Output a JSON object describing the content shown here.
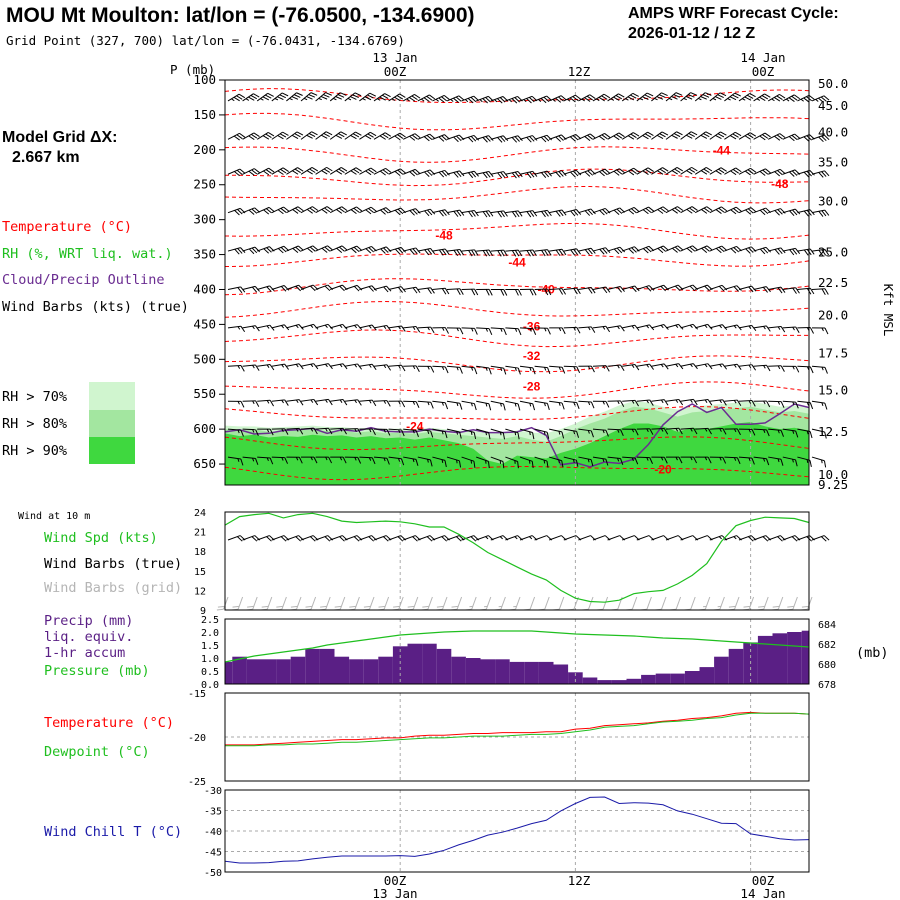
{
  "header": {
    "title": "MOU Mt Moulton:  lat/lon = (-76.0500, -134.6900)",
    "subtitle": "Grid Point (327, 700) lat/lon = (-76.0431, -134.6769)",
    "cycle_label": "AMPS WRF Forecast Cycle:",
    "cycle_value": "2026-01-12 / 12  Z"
  },
  "time_axis": {
    "ticks": [
      {
        "label": "00Z",
        "date": "13 Jan"
      },
      {
        "label": "12Z",
        "date": ""
      },
      {
        "label": "00Z",
        "date": "14 Jan"
      }
    ]
  },
  "left_legend": {
    "grid_label": "Model Grid ΔX:",
    "grid_value": "2.667 km",
    "temperature": "Temperature (°C)",
    "rh": "RH (%, WRT liq. wat.)",
    "cloud": "Cloud/Precip Outline",
    "wind": "Wind Barbs (kts) (true)",
    "rh_levels": [
      "RH > 70%",
      "RH > 80%",
      "RH > 90%"
    ]
  },
  "colors": {
    "temperature": "#ff0000",
    "rh": "#1fbf1f",
    "cloud": "#6a2c91",
    "precip": "#5a1f85",
    "windchill": "#1a1aa8",
    "grid": "#aaaaaa",
    "rh70": "#d0f5cf",
    "rh80": "#a3e6a0",
    "rh90": "#3fd83f"
  },
  "chart_data": [
    {
      "type": "heatmap",
      "name": "profile",
      "pressure_title": "P (mb)",
      "pressure_ticks": [
        100,
        150,
        200,
        250,
        300,
        350,
        400,
        450,
        500,
        550,
        600,
        650
      ],
      "pressure_range": [
        100,
        680
      ],
      "height_title": "Kft MSL",
      "height_ticks": [
        {
          "label": "50.0",
          "p": 106
        },
        {
          "label": "45.0",
          "p": 137
        },
        {
          "label": "40.0",
          "p": 175
        },
        {
          "label": "35.0",
          "p": 218
        },
        {
          "label": "30.0",
          "p": 274
        },
        {
          "label": "25.0",
          "p": 347
        },
        {
          "label": "22.5",
          "p": 391
        },
        {
          "label": "20.0",
          "p": 437
        },
        {
          "label": "17.5",
          "p": 492
        },
        {
          "label": "15.0",
          "p": 545
        },
        {
          "label": "12.5",
          "p": 604
        },
        {
          "label": "10.0",
          "p": 666
        },
        {
          "label": "9.25",
          "p": 680
        }
      ],
      "temperature_labels": [
        {
          "value": "-44",
          "p": 201,
          "hour": 22
        },
        {
          "value": "-48",
          "p": 249,
          "hour": 26
        },
        {
          "value": "-48",
          "p": 323,
          "hour": 3
        },
        {
          "value": "-44",
          "p": 361,
          "hour": 8
        },
        {
          "value": "-40",
          "p": 400,
          "hour": 10
        },
        {
          "value": "-36",
          "p": 453,
          "hour": 9
        },
        {
          "value": "-32",
          "p": 495,
          "hour": 9
        },
        {
          "value": "-28",
          "p": 539,
          "hour": 9
        },
        {
          "value": "-24",
          "p": 596,
          "hour": 1
        },
        {
          "value": "-20",
          "p": 658,
          "hour": 18
        }
      ],
      "cloud_top_hours": [
        -12,
        -11,
        -10,
        -9,
        -8,
        -7,
        -6,
        -5,
        -4,
        -3,
        -2,
        -1,
        0,
        1,
        2,
        3,
        4,
        5,
        6,
        7,
        8,
        9,
        10,
        11,
        12,
        13,
        14,
        15,
        16,
        17,
        18,
        19,
        20,
        21,
        22,
        23,
        24,
        25,
        26,
        27,
        28
      ],
      "cloud_top_p": [
        604,
        601,
        607,
        606,
        602,
        601,
        599,
        606,
        601,
        603,
        598,
        603,
        604,
        604,
        600,
        603,
        605,
        601,
        605,
        605,
        604,
        598,
        609,
        651,
        648,
        654,
        647,
        649,
        643,
        622,
        594,
        575,
        564,
        576,
        569,
        593,
        593,
        591,
        578,
        564,
        569
      ],
      "rh90_top_p": [
        606,
        610,
        608,
        612,
        610,
        611,
        608,
        610,
        609,
        612,
        610,
        613,
        612,
        615,
        612,
        616,
        620,
        628,
        645,
        650,
        638,
        640,
        642,
        634,
        628,
        620,
        610,
        600,
        592,
        592,
        596,
        604,
        598,
        600,
        596,
        592,
        590,
        596,
        600,
        598,
        602
      ],
      "rh80_top_p": [
        600,
        602,
        600,
        604,
        603,
        602,
        600,
        603,
        602,
        605,
        603,
        606,
        605,
        607,
        604,
        606,
        608,
        610,
        612,
        614,
        610,
        615,
        618,
        610,
        600,
        592,
        585,
        575,
        568,
        570,
        576,
        582,
        576,
        574,
        572,
        570,
        568,
        572,
        576,
        574,
        578
      ],
      "rh70_top_p": [
        595,
        596,
        596,
        598,
        597,
        596,
        595,
        597,
        597,
        599,
        598,
        600,
        599,
        601,
        598,
        600,
        602,
        603,
        604,
        606,
        602,
        605,
        606,
        600,
        592,
        582,
        575,
        566,
        560,
        562,
        568,
        572,
        568,
        566,
        564,
        562,
        560,
        564,
        568,
        566,
        570
      ],
      "wind_levels": [
        130,
        185,
        235,
        290,
        345,
        400,
        455,
        510,
        560,
        600,
        640
      ]
    },
    {
      "type": "line",
      "name": "wind10m",
      "panel_label": "Wind at 10 m",
      "labels": [
        "Wind Spd (kts)",
        "Wind Barbs (true)",
        "Wind Barbs (grid)"
      ],
      "y_ticks": [
        9,
        12,
        15,
        18,
        21,
        24
      ],
      "ylim": [
        9,
        24
      ],
      "x": [
        -12,
        -11,
        -10,
        -9,
        -8,
        -7,
        -6,
        -5,
        -4,
        -3,
        -2,
        -1,
        0,
        1,
        2,
        3,
        4,
        5,
        6,
        7,
        8,
        9,
        10,
        11,
        12,
        13,
        14,
        15,
        16,
        17,
        18,
        19,
        20,
        21,
        22,
        23,
        24,
        25,
        26,
        27,
        28
      ],
      "speed": [
        22.0,
        23.3,
        23.6,
        23.8,
        23.1,
        23.6,
        23.8,
        23.3,
        22.6,
        22.4,
        22.5,
        22.6,
        22.5,
        22.2,
        21.7,
        21.7,
        20.6,
        19.3,
        17.8,
        16.7,
        15.6,
        14.5,
        13.6,
        12.0,
        10.8,
        10.3,
        10.2,
        10.5,
        11.5,
        11.8,
        12.0,
        13.0,
        14.3,
        16.1,
        19.5,
        21.9,
        22.7,
        23.2,
        23.1,
        23.0,
        22.4
      ]
    },
    {
      "type": "bar",
      "name": "precip",
      "labels": [
        "Precip (mm)",
        "liq. equiv.",
        "1-hr accum",
        "Pressure (mb)"
      ],
      "left_ticks": [
        "0.0",
        "0.5",
        "1.0",
        "1.5",
        "2.0",
        "2.5"
      ],
      "right_ticks": [
        "678",
        "680",
        "682",
        "684"
      ],
      "right_unit": "(mb)",
      "ylim_precip": [
        0,
        2.5
      ],
      "ylim_pressure": [
        678,
        684.5
      ],
      "x": [
        -12,
        -11,
        -10,
        -9,
        -8,
        -7,
        -6,
        -5,
        -4,
        -3,
        -2,
        -1,
        0,
        1,
        2,
        3,
        4,
        5,
        6,
        7,
        8,
        9,
        10,
        11,
        12,
        13,
        14,
        15,
        16,
        17,
        18,
        19,
        20,
        21,
        22,
        23,
        24,
        25,
        26,
        27,
        28
      ],
      "precip": [
        0.85,
        1.05,
        0.95,
        0.95,
        0.95,
        1.05,
        1.35,
        1.35,
        1.05,
        0.95,
        0.95,
        1.05,
        1.45,
        1.55,
        1.55,
        1.35,
        1.05,
        1.0,
        0.95,
        0.95,
        0.85,
        0.85,
        0.85,
        0.75,
        0.45,
        0.25,
        0.15,
        0.15,
        0.2,
        0.35,
        0.4,
        0.4,
        0.5,
        0.65,
        1.05,
        1.35,
        1.6,
        1.85,
        1.95,
        2.0,
        2.05
      ],
      "pressure": [
        680.2,
        680.5,
        680.8,
        681.0,
        681.2,
        681.4,
        681.6,
        681.9,
        682.1,
        682.3,
        682.5,
        682.7,
        682.9,
        683.0,
        683.1,
        683.2,
        683.25,
        683.3,
        683.3,
        683.3,
        683.3,
        683.3,
        683.2,
        683.1,
        683.0,
        682.95,
        682.9,
        682.85,
        682.8,
        682.7,
        682.6,
        682.55,
        682.5,
        682.4,
        682.3,
        682.2,
        682.1,
        682.0,
        681.9,
        681.8,
        681.7
      ]
    },
    {
      "type": "line",
      "name": "tempdew",
      "labels": [
        "Temperature (°C)",
        "Dewpoint (°C)"
      ],
      "y_ticks": [
        -25,
        -20,
        -15
      ],
      "ylim": [
        -25,
        -15
      ],
      "x": [
        -12,
        -11,
        -10,
        -9,
        -8,
        -7,
        -6,
        -5,
        -4,
        -3,
        -2,
        -1,
        0,
        1,
        2,
        3,
        4,
        5,
        6,
        7,
        8,
        9,
        10,
        11,
        12,
        13,
        14,
        15,
        16,
        17,
        18,
        19,
        20,
        21,
        22,
        23,
        24,
        25,
        26,
        27,
        28
      ],
      "temperature": [
        -20.9,
        -20.9,
        -20.9,
        -20.8,
        -20.7,
        -20.6,
        -20.5,
        -20.4,
        -20.3,
        -20.3,
        -20.2,
        -20.1,
        -20.1,
        -19.9,
        -19.8,
        -19.8,
        -19.7,
        -19.6,
        -19.6,
        -19.5,
        -19.5,
        -19.5,
        -19.4,
        -19.4,
        -19.1,
        -19.0,
        -18.7,
        -18.6,
        -18.5,
        -18.4,
        -18.2,
        -18.1,
        -17.9,
        -17.8,
        -17.6,
        -17.3,
        -17.2,
        -17.3,
        -17.3,
        -17.3,
        -17.4
      ],
      "dewpoint": [
        -21.0,
        -21.0,
        -21.0,
        -20.9,
        -20.9,
        -20.8,
        -20.8,
        -20.7,
        -20.6,
        -20.6,
        -20.5,
        -20.4,
        -20.3,
        -20.2,
        -20.1,
        -20.1,
        -20.0,
        -19.9,
        -19.9,
        -19.9,
        -19.8,
        -19.7,
        -19.7,
        -19.6,
        -19.4,
        -19.2,
        -18.9,
        -18.8,
        -18.7,
        -18.5,
        -18.3,
        -18.2,
        -18.1,
        -17.9,
        -17.8,
        -17.5,
        -17.3,
        -17.3,
        -17.3,
        -17.3,
        -17.4
      ]
    },
    {
      "type": "line",
      "name": "windchill",
      "labels": [
        "Wind Chill T (°C)"
      ],
      "y_ticks": [
        -50,
        -45,
        -40,
        -35,
        -30
      ],
      "ylim": [
        -50,
        -30
      ],
      "x": [
        -12,
        -11,
        -10,
        -9,
        -8,
        -7,
        -6,
        -5,
        -4,
        -3,
        -2,
        -1,
        0,
        1,
        2,
        3,
        4,
        5,
        6,
        7,
        8,
        9,
        10,
        11,
        12,
        13,
        14,
        15,
        16,
        17,
        18,
        19,
        20,
        21,
        22,
        23,
        24,
        25,
        26,
        27,
        28
      ],
      "windchill": [
        -47.4,
        -47.8,
        -47.8,
        -47.7,
        -47.4,
        -47.3,
        -46.8,
        -46.4,
        -46.1,
        -46.1,
        -46.1,
        -46.1,
        -46.0,
        -46.2,
        -45.6,
        -44.7,
        -43.4,
        -42.3,
        -41.0,
        -40.3,
        -39.3,
        -38.2,
        -37.4,
        -35.1,
        -33.3,
        -31.8,
        -31.7,
        -33.3,
        -33.1,
        -33.2,
        -33.6,
        -35.1,
        -35.9,
        -37.0,
        -38.1,
        -38.2,
        -40.7,
        -41.3,
        -41.9,
        -42.2,
        -42.1
      ]
    }
  ]
}
